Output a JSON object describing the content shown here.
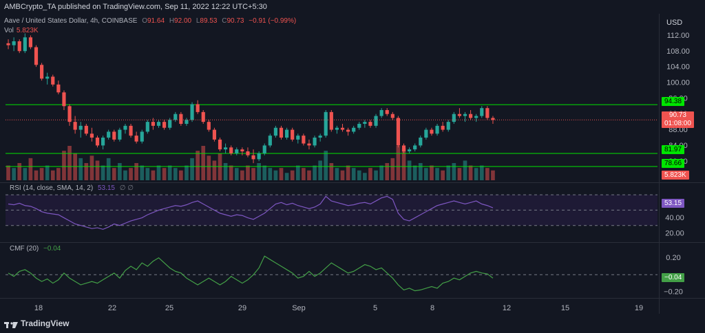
{
  "header": {
    "publisher": "AMBCrypto_TA published on TradingView.com, Sep 11, 2022 12:22 UTC+5:30"
  },
  "symbol": {
    "title": "Aave / United States Dollar, 4h, COINBASE",
    "open_label": "O",
    "open": "91.64",
    "high_label": "H",
    "high": "92.00",
    "low_label": "L",
    "low": "89.53",
    "close_label": "C",
    "close": "90.73",
    "change": "−0.91 (−0.99%)"
  },
  "volume": {
    "label": "Vol",
    "value": "5.823K"
  },
  "rsi_legend": {
    "label": "RSI (14, close, SMA, 14, 2)",
    "value": "53.15",
    "extra": "∅ ∅"
  },
  "cmf_legend": {
    "label": "CMF (20)",
    "value": "−0.04"
  },
  "axis": {
    "currency": "USD",
    "price_ticks": [
      "112.00",
      "108.00",
      "104.00",
      "100.00",
      "96.00",
      "92.00",
      "88.00",
      "84.00",
      "80.00"
    ],
    "rsi_ticks": [
      "60.00",
      "40.00",
      "20.00"
    ],
    "cmf_ticks": [
      "0.20",
      "−0.20"
    ],
    "x_ticks": [
      "18",
      "22",
      "25",
      "29",
      "Sep",
      "5",
      "8",
      "12",
      "15",
      "19"
    ]
  },
  "tags": {
    "resistance": "94.38",
    "last_price": "90.73",
    "countdown": "01:08:00",
    "support_1": "81.97",
    "support_2": "78.66",
    "volume": "5.823K",
    "rsi": "53.15",
    "cmf": "−0.04"
  },
  "branding": {
    "name": "TradingView"
  },
  "colors": {
    "background": "#131722",
    "up": "#26a69a",
    "down": "#ef5350",
    "level_line": "#00e600",
    "rsi_line": "#7e57c2",
    "cmf_line": "#43a047",
    "rsi_band": "#1e1a35"
  },
  "chart_data": [
    {
      "type": "candlestick",
      "title": "Aave / United States Dollar, 4h, COINBASE",
      "y_unit": "USD",
      "ylim": [
        79,
        114
      ],
      "x_labels": [
        "18",
        "22",
        "25",
        "29",
        "Sep",
        "5",
        "8",
        "12",
        "15",
        "19"
      ],
      "horizontal_levels": [
        94.38,
        81.97,
        78.66
      ],
      "ohlc": [
        [
          110.0,
          111.0,
          108.5,
          109.5
        ],
        [
          109.5,
          111.5,
          108.0,
          110.5
        ],
        [
          110.5,
          111.0,
          107.5,
          108.0
        ],
        [
          108.0,
          112.5,
          107.5,
          111.5
        ],
        [
          111.5,
          112.0,
          108.5,
          109.0
        ],
        [
          109.0,
          109.5,
          104.0,
          104.5
        ],
        [
          104.5,
          105.0,
          100.5,
          101.0
        ],
        [
          101.0,
          102.5,
          99.5,
          101.5
        ],
        [
          101.5,
          102.0,
          99.0,
          99.5
        ],
        [
          99.5,
          100.5,
          97.0,
          97.5
        ],
        [
          97.5,
          98.0,
          93.0,
          94.0
        ],
        [
          94.0,
          94.5,
          89.0,
          90.0
        ],
        [
          90.0,
          91.5,
          87.0,
          88.0
        ],
        [
          88.0,
          90.0,
          86.0,
          89.0
        ],
        [
          89.0,
          89.5,
          86.5,
          87.0
        ],
        [
          87.0,
          88.5,
          85.0,
          86.0
        ],
        [
          86.0,
          86.5,
          83.5,
          84.0
        ],
        [
          84.0,
          86.5,
          83.0,
          86.0
        ],
        [
          86.0,
          88.0,
          85.5,
          87.5
        ],
        [
          87.5,
          88.0,
          85.0,
          85.5
        ],
        [
          85.5,
          88.5,
          85.0,
          88.0
        ],
        [
          88.0,
          89.5,
          87.0,
          89.0
        ],
        [
          89.0,
          89.5,
          86.0,
          86.5
        ],
        [
          86.5,
          87.5,
          84.5,
          85.0
        ],
        [
          85.0,
          88.0,
          84.5,
          87.5
        ],
        [
          87.5,
          90.5,
          87.0,
          90.0
        ],
        [
          90.0,
          91.0,
          88.0,
          89.0
        ],
        [
          89.0,
          90.5,
          88.5,
          90.0
        ],
        [
          90.0,
          90.5,
          88.0,
          88.5
        ],
        [
          88.5,
          91.0,
          88.0,
          90.5
        ],
        [
          90.5,
          92.5,
          90.0,
          92.0
        ],
        [
          92.0,
          92.5,
          89.0,
          89.5
        ],
        [
          89.5,
          91.0,
          89.0,
          90.5
        ],
        [
          90.5,
          95.0,
          90.0,
          94.5
        ],
        [
          94.5,
          95.5,
          92.0,
          92.5
        ],
        [
          92.5,
          93.0,
          89.5,
          90.0
        ],
        [
          90.0,
          90.5,
          87.5,
          88.0
        ],
        [
          88.0,
          88.5,
          85.0,
          85.5
        ],
        [
          85.5,
          86.0,
          82.5,
          83.0
        ],
        [
          83.0,
          84.5,
          82.0,
          83.5
        ],
        [
          83.5,
          84.0,
          81.5,
          82.0
        ],
        [
          82.0,
          83.5,
          81.5,
          83.0
        ],
        [
          83.0,
          83.5,
          81.5,
          82.5
        ],
        [
          82.5,
          83.5,
          81.0,
          81.5
        ],
        [
          81.5,
          83.0,
          79.5,
          80.5
        ],
        [
          80.5,
          82.5,
          80.0,
          82.0
        ],
        [
          82.0,
          84.5,
          81.5,
          84.0
        ],
        [
          84.0,
          87.0,
          83.5,
          86.5
        ],
        [
          86.5,
          89.0,
          86.0,
          88.5
        ],
        [
          88.5,
          89.0,
          85.5,
          86.0
        ],
        [
          86.0,
          88.5,
          85.5,
          88.0
        ],
        [
          88.0,
          88.5,
          85.0,
          85.5
        ],
        [
          85.5,
          87.0,
          84.5,
          86.5
        ],
        [
          86.5,
          87.0,
          84.0,
          84.5
        ],
        [
          84.5,
          85.5,
          83.0,
          84.0
        ],
        [
          84.0,
          86.5,
          83.5,
          86.0
        ],
        [
          86.0,
          87.0,
          85.0,
          86.5
        ],
        [
          86.5,
          93.0,
          86.0,
          92.5
        ],
        [
          92.5,
          93.0,
          87.5,
          88.0
        ],
        [
          88.0,
          89.0,
          87.0,
          88.5
        ],
        [
          88.5,
          89.5,
          87.5,
          88.0
        ],
        [
          88.0,
          88.5,
          86.5,
          87.5
        ],
        [
          87.5,
          89.0,
          87.0,
          88.5
        ],
        [
          88.5,
          90.0,
          88.0,
          89.5
        ],
        [
          89.5,
          90.5,
          88.5,
          90.0
        ],
        [
          90.0,
          90.5,
          88.5,
          89.0
        ],
        [
          89.0,
          92.0,
          88.5,
          91.5
        ],
        [
          91.5,
          93.5,
          91.0,
          93.0
        ],
        [
          93.0,
          93.5,
          91.5,
          92.0
        ],
        [
          92.0,
          92.5,
          90.5,
          91.0
        ],
        [
          91.0,
          91.5,
          83.5,
          84.0
        ],
        [
          84.0,
          84.5,
          82.0,
          82.5
        ],
        [
          82.5,
          83.5,
          82.0,
          83.0
        ],
        [
          83.0,
          84.5,
          82.5,
          84.0
        ],
        [
          84.0,
          86.5,
          83.5,
          86.0
        ],
        [
          86.0,
          88.5,
          85.5,
          88.0
        ],
        [
          88.0,
          88.5,
          86.5,
          87.0
        ],
        [
          87.0,
          89.5,
          86.5,
          89.0
        ],
        [
          89.0,
          90.0,
          87.5,
          88.0
        ],
        [
          88.0,
          90.5,
          87.5,
          90.0
        ],
        [
          90.0,
          92.5,
          89.5,
          92.0
        ],
        [
          92.0,
          93.5,
          91.0,
          91.5
        ],
        [
          91.5,
          92.5,
          90.0,
          92.0
        ],
        [
          92.0,
          93.0,
          90.5,
          91.0
        ],
        [
          91.0,
          92.0,
          90.0,
          91.5
        ],
        [
          91.5,
          94.0,
          91.0,
          93.5
        ],
        [
          93.5,
          94.0,
          90.5,
          91.0
        ],
        [
          91.0,
          91.5,
          89.5,
          90.5
        ]
      ]
    },
    {
      "type": "bar",
      "title": "Vol",
      "values": [
        6,
        5,
        7,
        5,
        9,
        4,
        5,
        6,
        4,
        5,
        12,
        14,
        11,
        9,
        7,
        10,
        8,
        6,
        9,
        5,
        7,
        4,
        5,
        7,
        6,
        5,
        4,
        6,
        5,
        6,
        5,
        4,
        6,
        9,
        12,
        14,
        10,
        8,
        11,
        7,
        6,
        5,
        4,
        6,
        5,
        7,
        6,
        5,
        4,
        5,
        3,
        4,
        6,
        5,
        4,
        6,
        8,
        12,
        7,
        5,
        4,
        6,
        5,
        4,
        3,
        5,
        4,
        6,
        7,
        9,
        14,
        13,
        8,
        6,
        7,
        5,
        6,
        5,
        4,
        6,
        7,
        5,
        8,
        6,
        5,
        6,
        5,
        4
      ],
      "last_value": "5.823K"
    },
    {
      "type": "line",
      "title": "RSI (14, close, SMA, 14, 2)",
      "ylim": [
        10,
        80
      ],
      "band": [
        30,
        70
      ],
      "midline": 50,
      "values": [
        58,
        57,
        59,
        56,
        55,
        52,
        48,
        46,
        45,
        44,
        40,
        36,
        32,
        30,
        28,
        26,
        27,
        25,
        28,
        32,
        30,
        33,
        36,
        38,
        40,
        44,
        47,
        50,
        52,
        54,
        56,
        55,
        57,
        60,
        62,
        58,
        54,
        50,
        46,
        44,
        42,
        44,
        43,
        40,
        38,
        42,
        46,
        52,
        58,
        60,
        57,
        59,
        56,
        54,
        52,
        54,
        58,
        68,
        62,
        60,
        58,
        56,
        57,
        59,
        60,
        58,
        62,
        66,
        68,
        64,
        46,
        38,
        36,
        40,
        44,
        48,
        52,
        56,
        58,
        60,
        62,
        60,
        58,
        60,
        62,
        58,
        56,
        53
      ]
    },
    {
      "type": "line",
      "title": "CMF (20)",
      "ylim": [
        -0.25,
        0.32
      ],
      "midline": 0,
      "values": [
        0.02,
        -0.02,
        0.04,
        0.06,
        0.02,
        -0.04,
        -0.08,
        -0.05,
        -0.1,
        -0.06,
        0.02,
        -0.04,
        -0.08,
        -0.12,
        -0.1,
        -0.08,
        -0.1,
        -0.06,
        -0.02,
        0.02,
        -0.04,
        0.05,
        0.1,
        0.06,
        0.14,
        0.1,
        0.16,
        0.2,
        0.14,
        0.08,
        0.04,
        0.02,
        -0.04,
        -0.08,
        -0.12,
        -0.08,
        -0.04,
        -0.08,
        -0.12,
        -0.08,
        -0.02,
        -0.06,
        -0.1,
        -0.06,
        0.0,
        0.08,
        0.22,
        0.18,
        0.14,
        0.1,
        0.06,
        0.02,
        -0.04,
        -0.02,
        0.04,
        -0.02,
        0.02,
        0.08,
        0.14,
        0.1,
        0.06,
        0.02,
        0.04,
        0.08,
        0.12,
        0.1,
        0.06,
        0.08,
        0.02,
        -0.04,
        -0.12,
        -0.18,
        -0.16,
        -0.19,
        -0.18,
        -0.16,
        -0.14,
        -0.16,
        -0.1,
        -0.08,
        -0.04,
        -0.06,
        -0.02,
        0.02,
        0.04,
        0.02,
        0.01,
        -0.04
      ]
    }
  ]
}
